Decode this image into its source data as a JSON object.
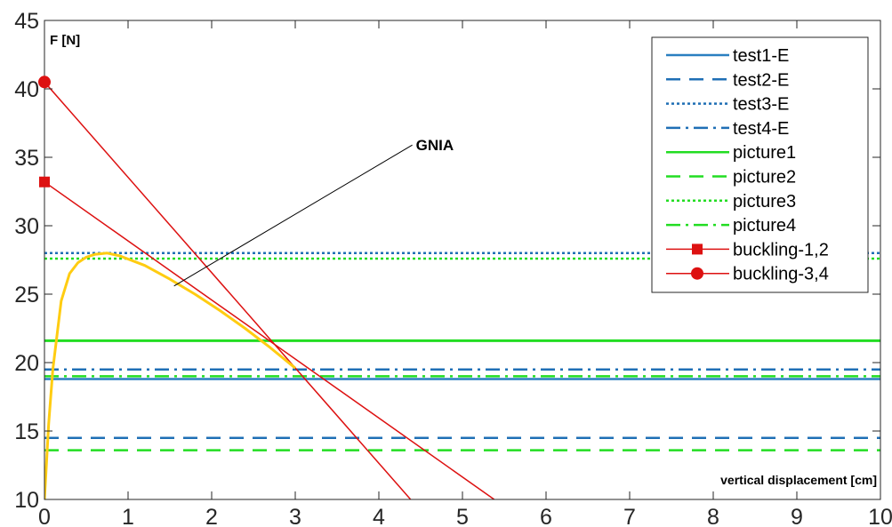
{
  "chart_data": {
    "type": "line",
    "xlabel": "vertical displacement [cm]",
    "ylabel": "F [N]",
    "xlim": [
      0,
      10
    ],
    "ylim": [
      10,
      45
    ],
    "xticks": [
      0,
      1,
      2,
      3,
      4,
      5,
      6,
      7,
      8,
      9,
      10
    ],
    "yticks": [
      10,
      15,
      20,
      25,
      30,
      35,
      40,
      45
    ],
    "grid": false,
    "legend_position": "top-right",
    "annotation": {
      "text": "GNIA",
      "from": [
        1.55,
        25.6
      ],
      "to": [
        4.4,
        35.9
      ]
    },
    "series": [
      {
        "name": "test1-E",
        "style": "solid",
        "color": "#2a7fc0",
        "x": [
          0,
          10
        ],
        "y": [
          18.8,
          18.8
        ]
      },
      {
        "name": "test2-E",
        "style": "dashed",
        "color": "#1f6fb5",
        "x": [
          0,
          10
        ],
        "y": [
          14.5,
          14.5
        ]
      },
      {
        "name": "test3-E",
        "style": "dotted",
        "color": "#1f6fb5",
        "x": [
          0,
          10
        ],
        "y": [
          28.0,
          28.0
        ]
      },
      {
        "name": "test4-E",
        "style": "dashdot",
        "color": "#1f6fb5",
        "x": [
          0,
          10
        ],
        "y": [
          19.5,
          19.5
        ]
      },
      {
        "name": "picture1",
        "style": "solid",
        "color": "#22dd22",
        "x": [
          0,
          10
        ],
        "y": [
          21.6,
          21.6
        ]
      },
      {
        "name": "picture2",
        "style": "dashed",
        "color": "#22dd22",
        "x": [
          0,
          10
        ],
        "y": [
          13.6,
          13.6
        ]
      },
      {
        "name": "picture3",
        "style": "dotted",
        "color": "#22dd22",
        "x": [
          0,
          10
        ],
        "y": [
          27.6,
          27.6
        ]
      },
      {
        "name": "picture4",
        "style": "dashdot",
        "color": "#22dd22",
        "x": [
          0,
          10
        ],
        "y": [
          19.0,
          19.0
        ]
      },
      {
        "name": "buckling-1,2",
        "style": "solid",
        "marker": "square",
        "color": "#dd1111",
        "x": [
          0,
          5.38
        ],
        "y": [
          33.2,
          10.0
        ]
      },
      {
        "name": "buckling-3,4",
        "style": "solid",
        "marker": "circle",
        "color": "#dd1111",
        "x": [
          0,
          4.38
        ],
        "y": [
          40.5,
          10.0
        ]
      },
      {
        "name": "GNIA",
        "style": "solid",
        "color": "#ffcc11",
        "in_legend": false,
        "x": [
          0,
          0.05,
          0.1,
          0.2,
          0.3,
          0.4,
          0.5,
          0.6,
          0.75,
          0.9,
          1.2,
          1.5,
          1.8,
          2.1,
          2.4,
          2.7,
          3.0
        ],
        "y": [
          10.0,
          15.5,
          19.5,
          24.5,
          26.5,
          27.3,
          27.7,
          27.9,
          28.0,
          27.8,
          27.1,
          26.1,
          25.0,
          23.8,
          22.5,
          21.1,
          19.6
        ]
      }
    ]
  }
}
